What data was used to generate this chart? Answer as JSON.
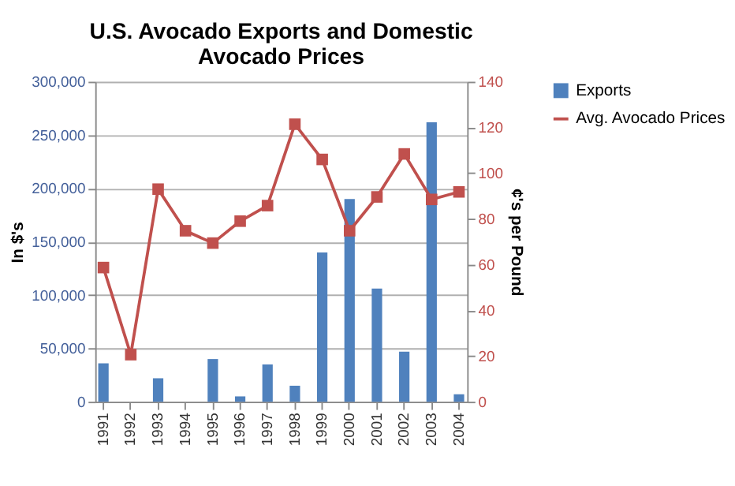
{
  "chart_data": {
    "type": "bar",
    "title": "U.S. Avocado Exports and Domestic Avocado Prices",
    "categories": [
      "1991",
      "1992",
      "1993",
      "1994",
      "1995",
      "1996",
      "1997",
      "1998",
      "1999",
      "2000",
      "2001",
      "2002",
      "2003",
      "2004"
    ],
    "series": [
      {
        "name": "Exports",
        "color": "#4f81bd",
        "values": [
          36000,
          0,
          22000,
          0,
          40000,
          5000,
          35000,
          15000,
          140000,
          190000,
          106000,
          47000,
          262000,
          7000
        ]
      },
      {
        "name": "Avg. Avocado Prices",
        "type": "line",
        "axis": "y2",
        "color": "#c0504d",
        "marker": "square",
        "values": [
          58.7,
          20.6,
          93,
          74.8,
          69.4,
          79,
          85.8,
          121.4,
          106,
          74.8,
          89.6,
          108.4,
          88.5,
          91.8
        ]
      }
    ],
    "ylabel": "In $'s",
    "y2label": "¢'s per Pound",
    "ylim": [
      0,
      300000
    ],
    "yticks": [
      0,
      {
        "value": 50000,
        "label": "50,000"
      },
      {
        "value": 100000,
        "label": "100,000"
      },
      {
        "value": 150000,
        "label": "150,000"
      },
      {
        "value": 200000,
        "label": "200,000"
      },
      {
        "value": 250000,
        "label": "250,000"
      },
      {
        "value": 300000,
        "label": "300,000"
      }
    ],
    "y2lim": [
      0,
      140
    ],
    "y2ticks": [
      0,
      20,
      40,
      60,
      80,
      100,
      120,
      140
    ],
    "grid": "y",
    "legend": "right"
  }
}
